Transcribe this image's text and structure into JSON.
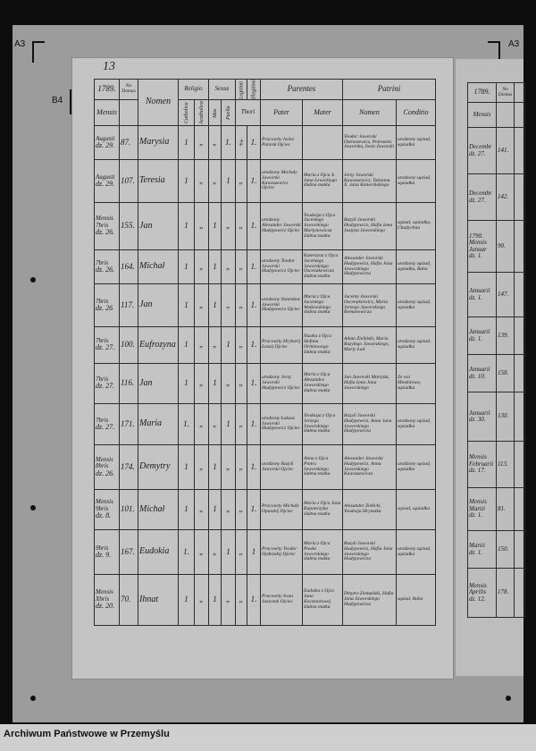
{
  "corner_labels": {
    "top_left": "A3",
    "top_right": "A3",
    "marker": "B4"
  },
  "footer": "Archiwum Państwowe w Przemyślu",
  "page_number": "13",
  "headers": {
    "year": "1789.",
    "no_domus": "No Domus",
    "mensis": "Mensis",
    "nomen": "Nomen",
    "religio": "Religio",
    "catholica": "Catholica",
    "acatholica": "Acatholica",
    "sexus": "Sexus",
    "mas": "Mas",
    "puella": "Puella",
    "legitimi": "Legitimi",
    "illegitimi": "Illegitimi",
    "thori": "Thori",
    "parentes": "Parentes",
    "pater": "Pater",
    "mater": "Mater",
    "patrini": "Patrini",
    "patrini_nomen": "Nomen",
    "conditio": "Conditio"
  },
  "rows": [
    {
      "month": "Augusti",
      "day": "dz. 29.",
      "no": "87.",
      "name": "Marysia",
      "cath": "1",
      "acath": "„",
      "mas": "„",
      "fem": "1.",
      "leg": "‡",
      "illeg": "1.",
      "pater": "Pracowity Iacko Pancak Ojciec",
      "mater": "",
      "patrini": "Teodor Jaworski Ostraszewicz, Petronela Jaworska, Iwan Jaworski",
      "conditio": "urodzony sąsiad, sąsiadka"
    },
    {
      "month": "Augusti",
      "day": "dz. 29.",
      "no": "107.",
      "name": "Teresia",
      "cath": "1",
      "acath": "„",
      "mas": "„",
      "fem": "1",
      "leg": "„",
      "illeg": "1.",
      "pater": "urodzony Michały Jaworski Kawaszewicz Ojciec",
      "mater": "Maria z Ojca X. Jana Lewickiego ślubna matka",
      "patrini": "Jerzy Jaworski Kawaszewicz, Tatianna X. Jana Kmiecińskiego",
      "conditio": "urodzony sąsiad, sąsiadka"
    },
    {
      "month": "Mensis 7bris",
      "day": "dz. 26.",
      "no": "155.",
      "name": "Jan",
      "cath": "1",
      "acath": "„",
      "mas": "1",
      "fem": "„",
      "leg": "„",
      "illeg": "1.",
      "pater": "urodzony Alexander Jaworski Hudypowicz Ojciec",
      "mater": "Teodozja z Ojca Jacentego Jaworskiego Martynowicza ślubna matka",
      "patrini": "Bazyli Jaworski Hudypowicz, Hafia żona Justyna Jaworskiego",
      "conditio": "sąsiad, sąsiadka, Chadychna"
    },
    {
      "month": "7bris",
      "day": "dz. 26.",
      "no": "164.",
      "name": "Michał",
      "cath": "1",
      "acath": "„",
      "mas": "1",
      "fem": "„",
      "leg": "„",
      "illeg": "1.",
      "pater": "urodzony Teodor Jaworski Hudypowicz Ojciec",
      "mater": "Katerzyna z Ojca Jacentego Jaworskiego Oscenakewicza ślubna matka",
      "patrini": "Alexander Jaworski Hudypowicz, Hafia Jana Jaworskiego Hudypowicza",
      "conditio": "urodzony sąsiad, sąsiadka, Baba"
    },
    {
      "month": "7bris",
      "day": "dz. 26",
      "no": "117.",
      "name": "Jan",
      "cath": "1",
      "acath": "„",
      "mas": "1",
      "fem": "„",
      "leg": "„",
      "illeg": "1.",
      "pater": "urodzony Stanisław Jaworski Hudypowicz Ojciec",
      "mater": "Maria z Ojca Jacentego Wadowskiego ślubna matka",
      "patrini": "Jacenty Jaworski Oscenakiewicz, Maria Jerzego Jaworskiego Romanowicza",
      "conditio": "urodzony sąsiad, sąsiadka"
    },
    {
      "month": "7bris",
      "day": "dz. 27.",
      "no": "100.",
      "name": "Eufrozyna",
      "cath": "1",
      "acath": "„",
      "mas": "„",
      "fem": "1",
      "leg": "„",
      "illeg": "1.",
      "pater": "Pracowity Hryhorij Łoszij Ojciec",
      "mater": "Nastka z Ojca Stefana Orimiowego ślubna matka",
      "patrini": "Adam Zieliński, Maria Bazylego Jaworskiego, Marty Ład",
      "conditio": "urodzony sąsiad, sąsiadka"
    },
    {
      "month": "7bris",
      "day": "dz. 27.",
      "no": "116.",
      "name": "Jan",
      "cath": "1",
      "acath": "„",
      "mas": "1",
      "fem": "„",
      "leg": "„",
      "illeg": "1.",
      "pater": "urodzony Jerzy Jaworski Hudypowicz Ojciec",
      "mater": "Maria z Ojca Alexandra Jaworskiego ślubna matka",
      "patrini": "Jan Jaworski Martyda, Hafia żona Jana Jaworskiego",
      "conditio": "Ze wsi Miedniowa, sąsiadka"
    },
    {
      "month": "7bris",
      "day": "dz. 27.",
      "no": "171.",
      "name": "Maria",
      "cath": "1.",
      "acath": "„",
      "mas": "„",
      "fem": "1",
      "leg": "„",
      "illeg": "1.",
      "pater": "urodzony Łukasz Jaworski Hudypowicz Ojciec",
      "mater": "Teodozja z Ojca Jerzego Jaworskiego ślubna matka",
      "patrini": "Bazyli Jaworski Hudypowicz, Anna Jana Jaworskiego Hudypowicza",
      "conditio": "urodzony sąsiad, sąsiadka"
    },
    {
      "month": "Mensis 8bris",
      "day": "dz. 26.",
      "no": "174.",
      "name": "Demytry",
      "cath": "1",
      "acath": "„",
      "mas": "1",
      "fem": "„",
      "leg": "„",
      "illeg": "1.",
      "pater": "urodzony Bazyli Jaworski Ojciec",
      "mater": "Anna z Ojca Piotra Jaworskiego ślubna matka",
      "patrini": "Alexander Jaworski Hudypowicz, Anna Jaworskiego Kawaszewicza",
      "conditio": "urodzony sąsiad, sąsiadka"
    },
    {
      "month": "Mensis 9bris",
      "day": "dz. 8.",
      "no": "101.",
      "name": "Michał",
      "cath": "1",
      "acath": "„",
      "mas": "1",
      "fem": "„",
      "leg": "„",
      "illeg": "1.",
      "pater": "Pracowity Michały Opaszkij Ojciec",
      "mater": "Maria z Ojca Jana Kapanczyka ślubna matka",
      "patrini": "Alexander Ziełicki, Teodozja Hrymaka",
      "conditio": "sąsiad, sąsiadka"
    },
    {
      "month": "9bris",
      "day": "dz. 9.",
      "no": "167.",
      "name": "Eudokia",
      "cath": "1.",
      "acath": "„",
      "mas": "„",
      "fem": "1",
      "leg": "„",
      "illeg": "1",
      "pater": "Pracowity Teodor Dydezakij Ojciec",
      "mater": "Maria z Ojca Pawła Jaworskiego ślubna matka",
      "patrini": "Bazyli Jaworski Hudypowicz, Hafia Jana Jaworskiego Hudypowicza",
      "conditio": "urodzony sąsiad, sąsiadka"
    },
    {
      "month": "Mensis Xbris",
      "day": "dz. 20.",
      "no": "70.",
      "name": "Ihnat",
      "cath": "1",
      "acath": "„",
      "mas": "1",
      "fem": "„",
      "leg": "„",
      "illeg": "1.",
      "pater": "Pracowity Iwan Jaszczak Ojciec",
      "mater": "Eudokia z Ojca Jana Koczmarowej ślubna matka",
      "patrini": "Dmytro Domański, Hafia Jana Jaworskiego Hudypowicza",
      "conditio": "sąsiad, Baba"
    }
  ],
  "side_page": {
    "year": "1789.",
    "no_domus": "No Domus",
    "mensis": "Mensis",
    "rows": [
      {
        "month": "Decembr",
        "day": "dz. 27.",
        "no": "141."
      },
      {
        "month": "Decembr",
        "day": "dz. 27.",
        "no": "142."
      },
      {
        "month": "1790. Mensis Januar",
        "day": "dz. 1.",
        "no": "90."
      },
      {
        "month": "Januarii",
        "day": "dz. 1.",
        "no": "147."
      },
      {
        "month": "Januarii",
        "day": "dz. 1.",
        "no": "139."
      },
      {
        "month": "Januarii",
        "day": "dz. 10.",
        "no": "158."
      },
      {
        "month": "Januarii",
        "day": "dz. 30.",
        "no": "130."
      },
      {
        "month": "Mensis Februarii",
        "day": "dz. 17.",
        "no": "113."
      },
      {
        "month": "Mensis Martii",
        "day": "dz. 1.",
        "no": "81."
      },
      {
        "month": "Martii",
        "day": "dz. 1.",
        "no": "150."
      },
      {
        "month": "Mensis Aprilis",
        "day": "dz. 12.",
        "no": "178."
      }
    ]
  }
}
